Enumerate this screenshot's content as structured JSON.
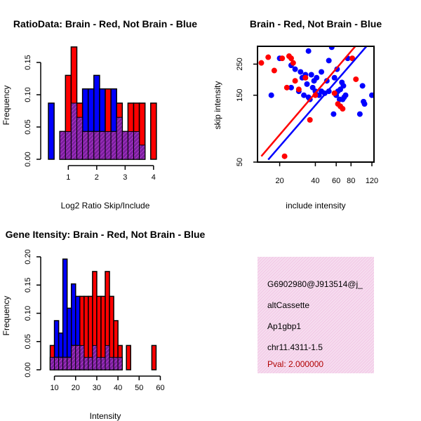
{
  "chart_data": [
    {
      "type": "bar",
      "title": "RatioData: Brain - Red, Not Brain - Blue",
      "xlabel": "Log2 Ratio Skip/Include",
      "ylabel": "Frequency",
      "xlim": [
        0.25,
        4.35
      ],
      "ylim": [
        0,
        0.175
      ],
      "xticks": [
        1,
        2,
        3,
        4
      ],
      "yticks": [
        0.0,
        0.05,
        0.1,
        0.15
      ],
      "yticklabels": [
        "0.00",
        "0.05",
        "0.10",
        "0.15"
      ],
      "bin_width": 0.2,
      "series": [
        {
          "name": "Not Brain",
          "color": "#0000ff",
          "bins": [
            [
              0.3,
              0.5,
              0.087
            ],
            [
              0.7,
              0.9,
              0.043
            ],
            [
              0.9,
              1.1,
              0.043
            ],
            [
              1.1,
              1.3,
              0.087
            ],
            [
              1.3,
              1.5,
              0.065
            ],
            [
              1.5,
              1.7,
              0.109
            ],
            [
              1.7,
              1.9,
              0.109
            ],
            [
              1.9,
              2.1,
              0.13
            ],
            [
              2.1,
              2.3,
              0.109
            ],
            [
              2.3,
              2.5,
              0.043
            ],
            [
              2.5,
              2.7,
              0.109
            ],
            [
              2.7,
              2.9,
              0.065
            ],
            [
              2.9,
              3.1,
              0.043
            ],
            [
              3.1,
              3.3,
              0.043
            ],
            [
              3.3,
              3.5,
              0.043
            ],
            [
              3.5,
              3.7,
              0.022
            ]
          ]
        },
        {
          "name": "Brain",
          "color": "#ff0000",
          "bins": [
            [
              0.7,
              0.9,
              0.043
            ],
            [
              0.9,
              1.1,
              0.13
            ],
            [
              1.1,
              1.3,
              0.174
            ],
            [
              1.3,
              1.5,
              0.087
            ],
            [
              1.5,
              1.7,
              0.043
            ],
            [
              1.7,
              1.9,
              0.043
            ],
            [
              1.9,
              2.1,
              0.043
            ],
            [
              2.1,
              2.3,
              0.043
            ],
            [
              2.3,
              2.5,
              0.109
            ],
            [
              2.5,
              2.7,
              0.043
            ],
            [
              2.7,
              2.9,
              0.087
            ],
            [
              2.9,
              3.1,
              0.043
            ],
            [
              3.1,
              3.3,
              0.087
            ],
            [
              3.3,
              3.5,
              0.087
            ],
            [
              3.5,
              3.7,
              0.087
            ],
            [
              3.9,
              4.1,
              0.087
            ]
          ]
        }
      ]
    },
    {
      "type": "scatter",
      "title": "Brain - Red, Not Brain - Blue",
      "xlabel": "include intensity",
      "ylabel": "skip intensity",
      "xscale": "log",
      "yscale": "log",
      "xlim": [
        13,
        125
      ],
      "ylim": [
        50,
        335
      ],
      "xticks": [
        20,
        40,
        60,
        80,
        120
      ],
      "yticks": [
        50,
        150,
        250
      ],
      "series": [
        {
          "name": "Not Brain",
          "color": "#0000ff",
          "points": [
            [
              17,
              150
            ],
            [
              20,
              275
            ],
            [
              25,
              170
            ],
            [
              25,
              245
            ],
            [
              27,
              230
            ],
            [
              29,
              160
            ],
            [
              30,
              220
            ],
            [
              31,
              200
            ],
            [
              32,
              150
            ],
            [
              33,
              210
            ],
            [
              34,
              180
            ],
            [
              35,
              145
            ],
            [
              35,
              310
            ],
            [
              36,
              140
            ],
            [
              37,
              210
            ],
            [
              38,
              170
            ],
            [
              39,
              190
            ],
            [
              40,
              160
            ],
            [
              41,
              200
            ],
            [
              43,
              150
            ],
            [
              45,
              160
            ],
            [
              45,
              220
            ],
            [
              48,
              155
            ],
            [
              50,
              190
            ],
            [
              52,
              160
            ],
            [
              52,
              265
            ],
            [
              55,
              330
            ],
            [
              57,
              110
            ],
            [
              58,
              200
            ],
            [
              59,
              155
            ],
            [
              60,
              150
            ],
            [
              61,
              230
            ],
            [
              62,
              160
            ],
            [
              64,
              140
            ],
            [
              65,
              165
            ],
            [
              67,
              185
            ],
            [
              68,
              140
            ],
            [
              69,
              175
            ],
            [
              70,
              145
            ],
            [
              72,
              150
            ],
            [
              75,
              275
            ],
            [
              95,
              110
            ],
            [
              100,
              175
            ],
            [
              102,
              135
            ],
            [
              104,
              130
            ],
            [
              120,
              150
            ]
          ]
        },
        {
          "name": "Brain",
          "color": "#ff0000",
          "points": [
            [
              14,
              255
            ],
            [
              16,
              280
            ],
            [
              18,
              225
            ],
            [
              21,
              275
            ],
            [
              22,
              55
            ],
            [
              23,
              170
            ],
            [
              24,
              285
            ],
            [
              25,
              275
            ],
            [
              26,
              255
            ],
            [
              27,
              190
            ],
            [
              29,
              165
            ],
            [
              33,
              200
            ],
            [
              36,
              100
            ],
            [
              40,
              150
            ],
            [
              58,
              155
            ],
            [
              62,
              130
            ],
            [
              65,
              125
            ],
            [
              68,
              120
            ],
            [
              82,
              275
            ],
            [
              88,
              195
            ]
          ]
        }
      ],
      "fits": [
        {
          "name": "Brain fit",
          "color": "#ff0000",
          "from": [
            14,
            55
          ],
          "to": [
            87,
            335
          ]
        },
        {
          "name": "Not Brain fit",
          "color": "#0000ff",
          "from": [
            16,
            52
          ],
          "to": [
            108,
            335
          ]
        }
      ]
    },
    {
      "type": "bar",
      "title": "Gene Itensity: Brain - Red, Not Brain - Blue",
      "xlabel": "Intensity",
      "ylabel": "Frequency",
      "xlim": [
        6.5,
        61.5
      ],
      "ylim": [
        0,
        0.2
      ],
      "xticks": [
        10,
        20,
        30,
        40,
        50,
        60
      ],
      "yticks": [
        0.0,
        0.05,
        0.1,
        0.15,
        0.2
      ],
      "yticklabels": [
        "0.00",
        "0.05",
        "0.10",
        "0.15",
        "0.20"
      ],
      "bin_width": 2,
      "series": [
        {
          "name": "Not Brain",
          "color": "#0000ff",
          "bins": [
            [
              8,
              10,
              0.022
            ],
            [
              10,
              12,
              0.087
            ],
            [
              12,
              14,
              0.065
            ],
            [
              14,
              16,
              0.196
            ],
            [
              16,
              18,
              0.109
            ],
            [
              18,
              20,
              0.152
            ],
            [
              20,
              22,
              0.13
            ],
            [
              22,
              24,
              0.043
            ],
            [
              24,
              26,
              0.022
            ],
            [
              26,
              28,
              0.022
            ],
            [
              28,
              30,
              0.043
            ],
            [
              30,
              32,
              0.022
            ],
            [
              32,
              34,
              0.022
            ],
            [
              34,
              36,
              0.043
            ],
            [
              36,
              38,
              0.022
            ],
            [
              38,
              40,
              0.022
            ],
            [
              40,
              42,
              0.022
            ]
          ]
        },
        {
          "name": "Brain",
          "color": "#ff0000",
          "bins": [
            [
              8,
              10,
              0.043
            ],
            [
              10,
              12,
              0.022
            ],
            [
              12,
              14,
              0.022
            ],
            [
              14,
              16,
              0.022
            ],
            [
              16,
              18,
              0.022
            ],
            [
              18,
              20,
              0.043
            ],
            [
              20,
              22,
              0.043
            ],
            [
              22,
              24,
              0.13
            ],
            [
              24,
              26,
              0.13
            ],
            [
              26,
              28,
              0.13
            ],
            [
              28,
              30,
              0.174
            ],
            [
              30,
              32,
              0.13
            ],
            [
              32,
              34,
              0.13
            ],
            [
              34,
              36,
              0.174
            ],
            [
              36,
              38,
              0.13
            ],
            [
              38,
              40,
              0.087
            ],
            [
              40,
              42,
              0.043
            ],
            [
              44,
              46,
              0.043
            ],
            [
              56,
              58,
              0.043
            ]
          ]
        }
      ]
    }
  ],
  "info_panel": {
    "id": "G6902980@J913514@j_",
    "event_type": "altCassette",
    "gene": "Ap1gbp1",
    "location": "chr11.4311-1.5",
    "pval": "Pval: 2.000000"
  }
}
